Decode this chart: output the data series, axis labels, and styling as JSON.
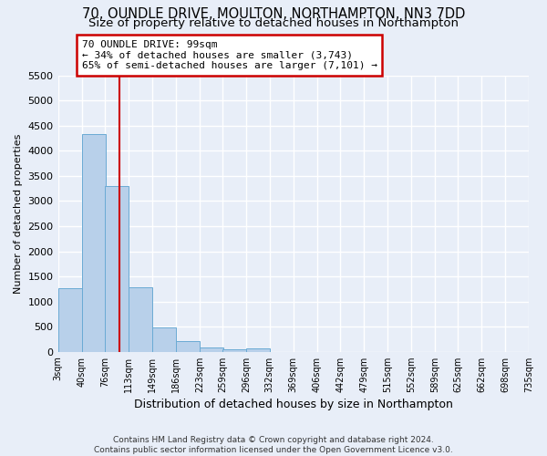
{
  "title1": "70, OUNDLE DRIVE, MOULTON, NORTHAMPTON, NN3 7DD",
  "title2": "Size of property relative to detached houses in Northampton",
  "xlabel": "Distribution of detached houses by size in Northampton",
  "ylabel": "Number of detached properties",
  "annotation_title": "70 OUNDLE DRIVE: 99sqm",
  "annotation_line2": "← 34% of detached houses are smaller (3,743)",
  "annotation_line3": "65% of semi-detached houses are larger (7,101) →",
  "footer1": "Contains HM Land Registry data © Crown copyright and database right 2024.",
  "footer2": "Contains public sector information licensed under the Open Government Licence v3.0.",
  "bar_left_edges": [
    3,
    40,
    76,
    113,
    149,
    186,
    223,
    259,
    296,
    332,
    369,
    406,
    442,
    479,
    515,
    552,
    589,
    625,
    662,
    698
  ],
  "bar_heights": [
    1270,
    4330,
    3300,
    1280,
    490,
    210,
    80,
    50,
    60,
    0,
    0,
    0,
    0,
    0,
    0,
    0,
    0,
    0,
    0,
    0
  ],
  "bin_width": 37,
  "bar_color": "#b8d0ea",
  "bar_edge_color": "#6aaad4",
  "vline_x": 99,
  "vline_color": "#cc0000",
  "annotation_box_color": "#cc0000",
  "ylim": [
    0,
    5500
  ],
  "yticks": [
    0,
    500,
    1000,
    1500,
    2000,
    2500,
    3000,
    3500,
    4000,
    4500,
    5000,
    5500
  ],
  "xtick_labels": [
    "3sqm",
    "40sqm",
    "76sqm",
    "113sqm",
    "149sqm",
    "186sqm",
    "223sqm",
    "259sqm",
    "296sqm",
    "332sqm",
    "369sqm",
    "406sqm",
    "442sqm",
    "479sqm",
    "515sqm",
    "552sqm",
    "589sqm",
    "625sqm",
    "662sqm",
    "698sqm",
    "735sqm"
  ],
  "xtick_positions": [
    3,
    40,
    76,
    113,
    149,
    186,
    223,
    259,
    296,
    332,
    369,
    406,
    442,
    479,
    515,
    552,
    589,
    625,
    662,
    698,
    735
  ],
  "bg_color": "#e8eef8",
  "plot_bg_color": "#e8eef8",
  "grid_color": "#ffffff",
  "title1_fontsize": 10.5,
  "title2_fontsize": 9.5,
  "xlabel_fontsize": 9,
  "ylabel_fontsize": 8,
  "annotation_fontsize": 8,
  "footer_fontsize": 6.5
}
